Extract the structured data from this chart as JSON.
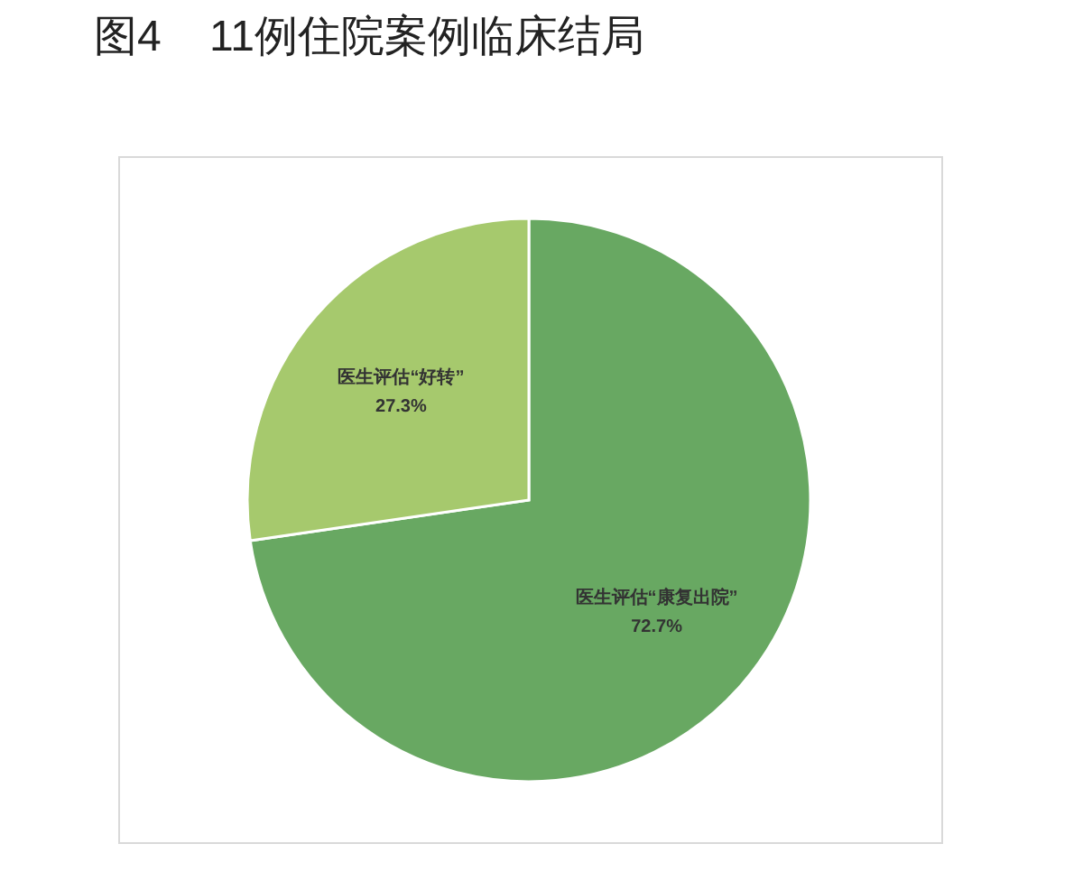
{
  "chart_data": {
    "type": "pie",
    "title": "图4    11例住院案例临床结局",
    "categories": [
      "医生评估“康复出院”",
      "医生评估“好转”"
    ],
    "values": [
      72.7,
      27.3
    ],
    "colors": [
      "#68a862",
      "#a6c96d"
    ],
    "value_labels": [
      "72.7%",
      "27.3%"
    ],
    "legend": false
  }
}
